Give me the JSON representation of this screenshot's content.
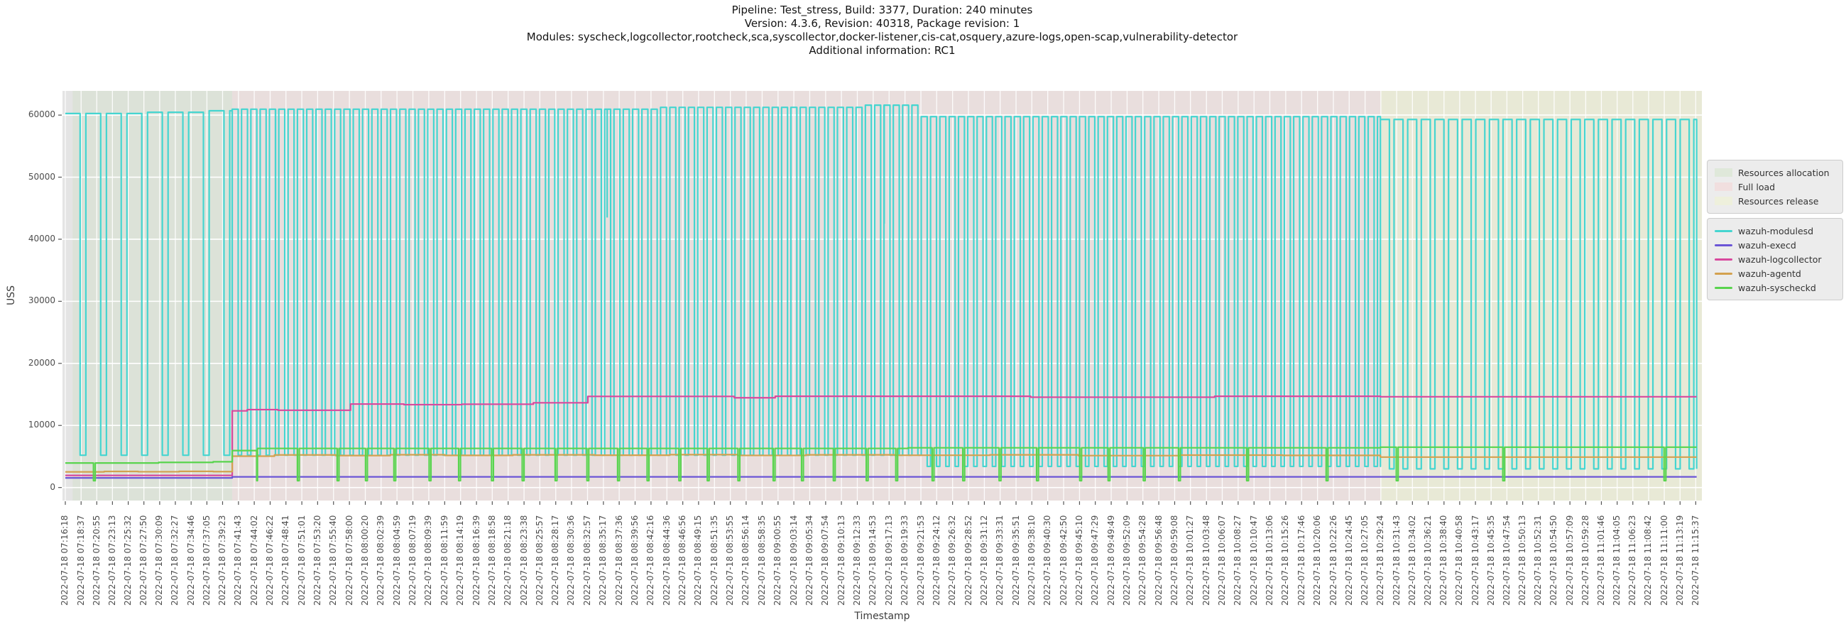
{
  "title": {
    "lines": [
      "Pipeline: Test_stress, Build: 3377, Duration: 240 minutes",
      "Version: 4.3.6, Revision: 40318, Package revision: 1",
      "Modules: syscheck,logcollector,rootcheck,sca,syscollector,docker-listener,cis-cat,osquery,azure-logs,open-scap,vulnerability-detector",
      "Additional information: RC1"
    ]
  },
  "colors": {
    "page_bg": "#ffffff",
    "plot_bg": "#e4e4e4",
    "grid": "#ffffff",
    "tick_mark": "#555555",
    "tick_text": "#4d4d4d",
    "title_text": "#141414",
    "legend_bg": "#ececec",
    "legend_border": "#cccccc"
  },
  "chart_data": {
    "type": "line",
    "xlabel": "Timestamp",
    "ylabel": "USS",
    "grid": true,
    "legend_position": "right",
    "ylim": [
      -2100,
      63900
    ],
    "yticks": [
      0,
      10000,
      20000,
      30000,
      40000,
      50000,
      60000
    ],
    "x_range": [
      "07:15:53",
      "11:16:31"
    ],
    "tick_date": "2022-07-18",
    "tick_times": [
      "07:16:18",
      "07:18:37",
      "07:20:55",
      "07:23:13",
      "07:25:32",
      "07:27:50",
      "07:30:09",
      "07:32:27",
      "07:34:46",
      "07:37:05",
      "07:39:23",
      "07:41:43",
      "07:44:02",
      "07:46:22",
      "07:48:41",
      "07:51:01",
      "07:53:20",
      "07:55:40",
      "07:58:00",
      "08:00:20",
      "08:02:39",
      "08:04:59",
      "08:07:19",
      "08:09:39",
      "08:11:59",
      "08:14:19",
      "08:16:39",
      "08:18:58",
      "08:21:18",
      "08:23:38",
      "08:25:57",
      "08:28:17",
      "08:30:36",
      "08:32:57",
      "08:35:17",
      "08:37:36",
      "08:39:56",
      "08:42:16",
      "08:44:36",
      "08:46:56",
      "08:49:15",
      "08:51:35",
      "08:53:55",
      "08:56:14",
      "08:58:35",
      "09:00:55",
      "09:03:14",
      "09:05:34",
      "09:07:54",
      "09:10:13",
      "09:12:33",
      "09:14:53",
      "09:17:13",
      "09:19:33",
      "09:21:53",
      "09:24:12",
      "09:26:32",
      "09:28:52",
      "09:31:12",
      "09:33:31",
      "09:35:51",
      "09:38:10",
      "09:40:30",
      "09:42:50",
      "09:45:10",
      "09:47:29",
      "09:49:49",
      "09:52:09",
      "09:54:28",
      "09:56:48",
      "09:59:08",
      "10:01:27",
      "10:03:48",
      "10:06:07",
      "10:08:27",
      "10:10:47",
      "10:13:06",
      "10:15:26",
      "10:17:46",
      "10:20:06",
      "10:22:26",
      "10:24:45",
      "10:27:05",
      "10:29:24",
      "10:31:43",
      "10:34:02",
      "10:36:21",
      "10:38:40",
      "10:40:58",
      "10:43:17",
      "10:45:35",
      "10:47:54",
      "10:50:13",
      "10:52:31",
      "10:54:50",
      "10:57:09",
      "10:59:28",
      "11:01:46",
      "11:04:05",
      "11:06:23",
      "11:08:42",
      "11:11:00",
      "11:13:19",
      "11:15:37"
    ],
    "regions": [
      {
        "label": "Resources allocation",
        "from": "07:17:22",
        "to": "07:40:48",
        "fill": "#dce2d8",
        "legend_fill": "#dfe8da"
      },
      {
        "label": "Full load",
        "from": "07:40:48",
        "to": "10:29:20",
        "fill": "#e9dedd",
        "legend_fill": "#f1dfdf"
      },
      {
        "label": "Resources release",
        "from": "10:29:20",
        "to": "11:16:31",
        "fill": "#e8e9d6",
        "legend_fill": "#eef0dc"
      }
    ],
    "series": [
      {
        "name": "wazuh-modulesd",
        "color": "#45d5d0",
        "type": "square_wave",
        "high_levels": [
          [
            "07:16:18",
            60250
          ],
          [
            "07:27:00",
            60450
          ],
          [
            "07:36:00",
            60700
          ],
          [
            "07:40:48",
            60950
          ],
          [
            "08:43:40",
            61250
          ],
          [
            "09:13:05",
            61600
          ],
          [
            "09:20:50",
            59750
          ],
          [
            "10:29:20",
            59300
          ]
        ],
        "low_levels": [
          [
            "07:16:18",
            5200
          ],
          [
            "09:20:50",
            3400
          ],
          [
            "10:29:20",
            3000
          ]
        ],
        "phases": [
          {
            "from": "07:16:18",
            "to": "07:40:48",
            "period_s": 181,
            "low_frac": 0.28
          },
          {
            "from": "07:40:48",
            "to": "10:29:20",
            "period_s": 82,
            "low_frac": 0.36
          },
          {
            "from": "10:29:20",
            "to": "11:15:45",
            "period_s": 120,
            "low_frac": 0.34
          }
        ],
        "partial_dips": [
          [
            "07:47:10",
            46300
          ],
          [
            "08:35:50",
            43500
          ],
          [
            "09:16:30",
            42500
          ]
        ]
      },
      {
        "name": "wazuh-execd",
        "color": "#6b55d6",
        "type": "step",
        "points": [
          [
            "07:16:18",
            1550
          ],
          [
            "07:40:48",
            1720
          ],
          [
            "11:15:45",
            1720
          ]
        ]
      },
      {
        "name": "wazuh-logcollector",
        "color": "#d8489d",
        "type": "step",
        "points": [
          [
            "07:16:18",
            1950
          ],
          [
            "07:40:48",
            12350
          ],
          [
            "07:43:00",
            12550
          ],
          [
            "07:47:30",
            12450
          ],
          [
            "07:58:10",
            13450
          ],
          [
            "08:06:00",
            13350
          ],
          [
            "08:14:30",
            13420
          ],
          [
            "08:25:00",
            13650
          ],
          [
            "08:33:00",
            14680
          ],
          [
            "08:54:30",
            14460
          ],
          [
            "09:00:30",
            14700
          ],
          [
            "09:38:00",
            14550
          ],
          [
            "10:05:00",
            14700
          ],
          [
            "10:29:20",
            14620
          ],
          [
            "11:15:45",
            14620
          ]
        ]
      },
      {
        "name": "wazuh-agentd",
        "color": "#d3a14f",
        "type": "step",
        "points": [
          [
            "07:16:18",
            2520
          ],
          [
            "07:22:00",
            2590
          ],
          [
            "07:27:00",
            2540
          ],
          [
            "07:33:00",
            2600
          ],
          [
            "07:38:00",
            2560
          ],
          [
            "07:40:48",
            5050
          ],
          [
            "07:47:00",
            5250
          ],
          [
            "07:56:00",
            5150
          ],
          [
            "08:04:00",
            5280
          ],
          [
            "08:12:00",
            5180
          ],
          [
            "08:22:00",
            5260
          ],
          [
            "08:34:00",
            5210
          ],
          [
            "08:45:00",
            5290
          ],
          [
            "08:55:00",
            5170
          ],
          [
            "09:05:00",
            5260
          ],
          [
            "09:18:00",
            5200
          ],
          [
            "09:32:00",
            5260
          ],
          [
            "09:45:00",
            5140
          ],
          [
            "10:00:00",
            5220
          ],
          [
            "10:15:00",
            5180
          ],
          [
            "10:29:20",
            4900
          ],
          [
            "11:15:45",
            4900
          ]
        ]
      },
      {
        "name": "wazuh-syscheckd",
        "color": "#59d44e",
        "type": "step",
        "points": [
          [
            "07:16:18",
            3950
          ],
          [
            "07:30:00",
            4050
          ],
          [
            "07:38:00",
            4150
          ],
          [
            "07:40:48",
            5950
          ],
          [
            "07:44:30",
            6300
          ],
          [
            "09:20:00",
            6400
          ],
          [
            "10:29:20",
            6500
          ],
          [
            "11:15:45",
            6500
          ]
        ],
        "dip_value": 1100,
        "dip_halfwidth_s": 8,
        "dips": [
          "07:20:34",
          "07:44:32",
          "07:50:30",
          "07:56:20",
          "08:00:30",
          "08:04:40",
          "08:09:50",
          "08:14:10",
          "08:19:00",
          "08:23:30",
          "08:28:20",
          "08:33:00",
          "08:37:30",
          "08:41:50",
          "08:46:30",
          "08:50:40",
          "08:55:10",
          "09:00:20",
          "09:04:30",
          "09:09:10",
          "09:14:00",
          "09:18:20",
          "09:23:40",
          "09:28:10",
          "09:33:30",
          "09:39:00",
          "09:45:20",
          "09:49:30",
          "09:54:40",
          "09:59:50",
          "10:09:50",
          "10:21:30",
          "10:31:48",
          "10:47:26",
          "11:11:06"
        ]
      }
    ]
  }
}
